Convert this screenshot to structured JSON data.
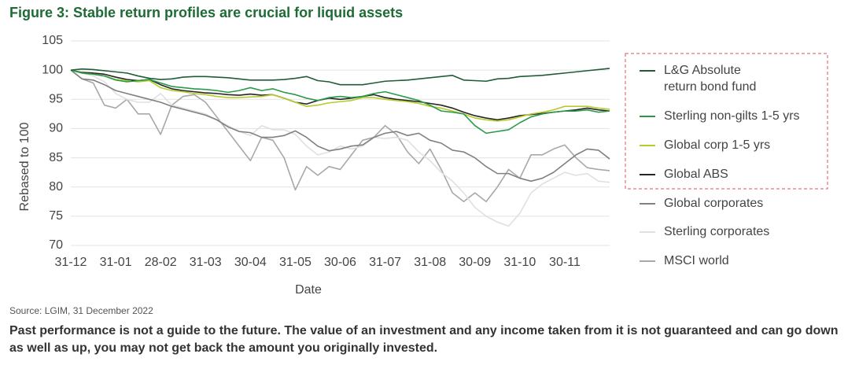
{
  "chart_data": {
    "type": "line",
    "title": "Figure 3: Stable return profiles are crucial for liquid assets",
    "x_label": "Date",
    "y_label": "Rebased to 100",
    "source": "Source: LGIM, 31 December 2022",
    "note": "Past performance is not a guide to the future. The value of an investment and any income taken from it is not guaranteed and can go down as well as up, you may not get back the amount you originally invested.",
    "categories": [
      "31-12",
      null,
      null,
      null,
      "31-01",
      null,
      null,
      null,
      "28-02",
      null,
      null,
      null,
      "31-03",
      null,
      null,
      null,
      "30-04",
      null,
      null,
      null,
      "31-05",
      null,
      null,
      null,
      "30-06",
      null,
      null,
      null,
      "31-07",
      null,
      null,
      null,
      "31-08",
      null,
      null,
      null,
      "30-09",
      null,
      null,
      null,
      "31-10",
      null,
      null,
      null,
      "30-11",
      null,
      null,
      null,
      null
    ],
    "ylim": [
      70,
      105
    ],
    "yticks": [
      70,
      75,
      80,
      85,
      90,
      95,
      100,
      105
    ],
    "grid": true,
    "legend": "right",
    "series": [
      {
        "name": "L&G Absolute return bond fund",
        "color": "#1f5c37",
        "values": [
          100,
          100.2,
          100.1,
          99.9,
          99.7,
          99.5,
          99,
          98.6,
          98.4,
          98.5,
          98.8,
          98.9,
          98.9,
          98.8,
          98.7,
          98.5,
          98.3,
          98.3,
          98.3,
          98.4,
          98.6,
          98.9,
          98.2,
          98.0,
          97.5,
          97.5,
          97.5,
          97.8,
          98.1,
          98.2,
          98.3,
          98.5,
          98.7,
          98.9,
          99.1,
          98.3,
          98.2,
          98.1,
          98.5,
          98.6,
          98.9,
          99.0,
          99.1,
          99.3,
          99.5,
          99.7,
          99.9,
          100.1,
          100.3
        ]
      },
      {
        "name": "Sterling non-gilts 1-5 yrs",
        "color": "#2a9a48",
        "values": [
          100,
          99.5,
          99.3,
          99,
          98.3,
          98,
          98.2,
          98.4,
          97.8,
          97.2,
          97,
          96.8,
          96.7,
          96.5,
          96.2,
          96.5,
          97,
          96.5,
          96.8,
          96.2,
          95.8,
          95.2,
          94.8,
          95.3,
          95.5,
          95.3,
          95.5,
          96,
          96.3,
          95.8,
          95.3,
          94.8,
          94,
          93,
          92.8,
          92.5,
          90.5,
          89.2,
          89.5,
          89.8,
          91,
          92,
          92.5,
          92.8,
          93,
          93,
          93.2,
          92.8,
          93
        ]
      },
      {
        "name": "Global corp 1-5 yrs",
        "color": "#b7cc2c",
        "values": [
          100,
          99.5,
          99.3,
          99,
          98.4,
          98.2,
          98,
          98.2,
          97,
          96.5,
          96.3,
          96,
          95.8,
          95.5,
          95.3,
          95.3,
          95.4,
          95.5,
          95.8,
          95.2,
          94.5,
          93.8,
          94,
          94.4,
          94.6,
          94.8,
          95.3,
          95.3,
          95,
          94.8,
          94.6,
          94.3,
          93.8,
          93.5,
          93,
          92.5,
          91.8,
          91.5,
          91.3,
          91.5,
          92,
          92.5,
          92.8,
          93.2,
          93.8,
          93.8,
          93.8,
          93.5,
          93.3
        ]
      },
      {
        "name": "Global ABS",
        "color": "#262626",
        "values": [
          100,
          99.6,
          99.5,
          99.3,
          98.8,
          98.4,
          98.2,
          98.4,
          97.5,
          96.8,
          96.5,
          96.3,
          96.1,
          96,
          95.8,
          95.7,
          95.9,
          95.7,
          95.8,
          95.2,
          94.5,
          94.2,
          94.8,
          95.2,
          95,
          95.2,
          95.5,
          95.8,
          95.3,
          95,
          94.8,
          94.6,
          94.3,
          94,
          93.5,
          92.8,
          92.2,
          91.8,
          91.5,
          91.8,
          92.2,
          92.4,
          92.6,
          92.8,
          93,
          93.2,
          93.5,
          93.2,
          93
        ]
      },
      {
        "name": "Global corporates",
        "color": "#808080",
        "values": [
          100,
          98.5,
          98.3,
          97.5,
          96.5,
          96,
          95.5,
          95,
          94.5,
          93.8,
          93.3,
          92.8,
          92.3,
          91.5,
          90.3,
          89.5,
          89.3,
          88.5,
          88.5,
          88.8,
          89.6,
          88.5,
          87,
          86.2,
          86.5,
          87,
          87.2,
          88.5,
          89.2,
          89.5,
          88.8,
          89.2,
          88,
          87.5,
          86.3,
          86,
          85,
          83.5,
          82.3,
          82.3,
          81.5,
          81,
          81.5,
          82.5,
          84,
          85.5,
          86.5,
          86.3,
          84.8
        ]
      },
      {
        "name": "Sterling corporates",
        "color": "#e0e0e0",
        "values": [
          100,
          99.5,
          99,
          98,
          96,
          95,
          94.5,
          94.5,
          96,
          94,
          93.5,
          93,
          92.5,
          91.5,
          90.5,
          89.5,
          88.8,
          90.5,
          89.8,
          89.8,
          89,
          87,
          85.5,
          86,
          87,
          86.5,
          87,
          88.5,
          88.3,
          88.5,
          88,
          86,
          84.5,
          82.5,
          81,
          79,
          76.5,
          75,
          74,
          73.3,
          75.5,
          79,
          80.5,
          81.5,
          82.5,
          82,
          82.3,
          81,
          80.8
        ]
      },
      {
        "name": "MSCI world",
        "color": "#a8a8a8",
        "values": [
          100,
          98.5,
          97.8,
          94,
          93.5,
          95,
          92.5,
          92.5,
          89,
          94,
          95.5,
          95.8,
          94.5,
          92,
          89.5,
          87,
          84.5,
          88.5,
          88,
          85,
          79.5,
          83.5,
          82,
          83.5,
          83,
          85.5,
          88,
          88.5,
          90.5,
          89,
          86,
          84,
          86.5,
          83,
          79,
          77.5,
          79,
          77.5,
          80,
          83,
          81.5,
          85.5,
          85.5,
          86.5,
          87.2,
          85,
          83.3,
          83,
          82.8
        ]
      }
    ]
  }
}
